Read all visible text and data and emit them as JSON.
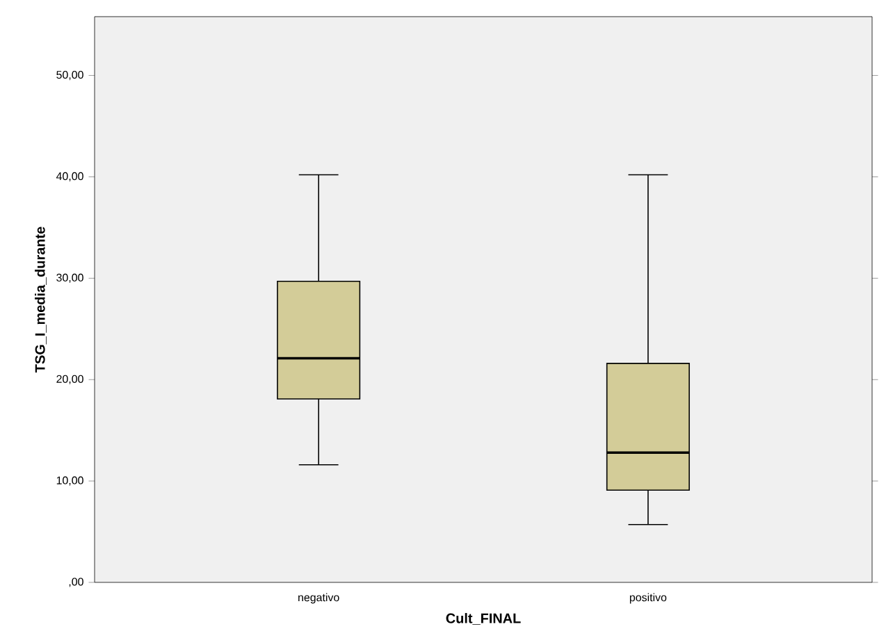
{
  "chart_data": {
    "type": "box",
    "xlabel": "Cult_FINAL",
    "ylabel": "TSG_I_media_durante",
    "categories": [
      "negativo",
      "positivo"
    ],
    "color": "#d3cc98",
    "boxes": [
      {
        "low": 11.6,
        "q1": 18.1,
        "median": 22.1,
        "q3": 29.7,
        "high": 40.2
      },
      {
        "low": 5.7,
        "q1": 9.1,
        "median": 12.8,
        "q3": 21.6,
        "high": 40.2
      }
    ],
    "ylim": [
      0,
      55.8
    ],
    "yticks": [
      {
        "value": 0,
        "label": ",00"
      },
      {
        "value": 10,
        "label": "10,00"
      },
      {
        "value": 20,
        "label": "20,00"
      },
      {
        "value": 30,
        "label": "30,00"
      },
      {
        "value": 40,
        "label": "40,00"
      },
      {
        "value": 50,
        "label": "50,00"
      }
    ]
  }
}
